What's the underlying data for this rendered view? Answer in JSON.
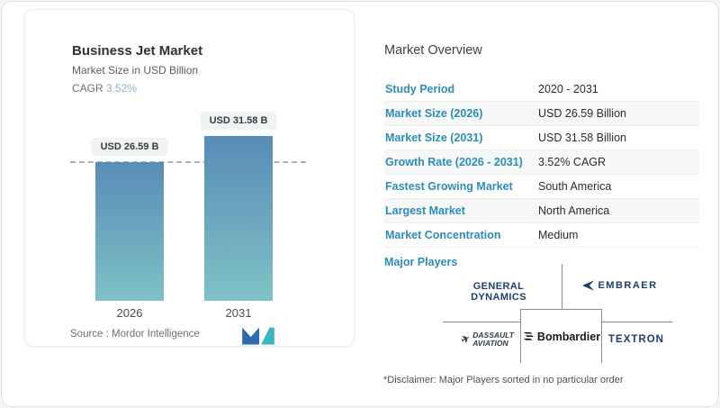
{
  "chart_card": {
    "title": "Business Jet Market",
    "subtitle": "Market Size in USD Billion",
    "cagr_label": "CAGR",
    "cagr_value": "3.52%",
    "source": "Source :  Mordor Intelligence",
    "logo_name": "mordor-intelligence-logo"
  },
  "chart_data": {
    "type": "bar",
    "title": "Business Jet Market",
    "subtitle": "Market Size in USD Billion",
    "categories": [
      "2026",
      "2031"
    ],
    "values": [
      26.59,
      31.58
    ],
    "value_labels": [
      "USD 26.59 B",
      "USD 31.58 B"
    ],
    "unit": "USD Billion",
    "cagr": "3.52%",
    "reference_line": 26.59,
    "ylim": [
      0,
      33
    ],
    "grid": "off",
    "bar_gradient_top": "#588cb6",
    "bar_gradient_bottom": "#7fc2c6",
    "reference_line_style": "dashed gray"
  },
  "overview": {
    "heading": "Market Overview",
    "rows": [
      {
        "label": "Study Period",
        "value": "2020 - 2031"
      },
      {
        "label": "Market Size (2026)",
        "value": "USD 26.59 Billion"
      },
      {
        "label": "Market Size (2031)",
        "value": "USD 31.58 Billion"
      },
      {
        "label": "Growth Rate (2026 - 2031)",
        "value": "3.52% CAGR"
      },
      {
        "label": "Fastest Growing Market",
        "value": "South America"
      },
      {
        "label": "Largest Market",
        "value": "North America"
      },
      {
        "label": "Market Concentration",
        "value": "Medium"
      }
    ],
    "major_players_label": "Major Players",
    "players": [
      "GENERAL DYNAMICS",
      "EMBRAER",
      "DASSAULT AVIATION",
      "Bombardier",
      "TEXTRON"
    ],
    "disclaimer": "*Disclaimer: Major Players sorted in no particular order"
  },
  "logos": {
    "general_dynamics": "GENERAL DYNAMICS",
    "embraer": "EMBRAER",
    "dassault_line1": "DASSAULT",
    "dassault_line2": "AVIATION",
    "bombardier": "Bombardier",
    "textron": "TEXTRON"
  },
  "colors": {
    "accent_blue": "#2b8dba",
    "cagr_value": "#8db6cd",
    "bar_top": "#588cb6",
    "bar_bottom": "#7fc2c6",
    "logo_navy": "#1c3f72",
    "logo_teal": "#3ab5c6"
  }
}
